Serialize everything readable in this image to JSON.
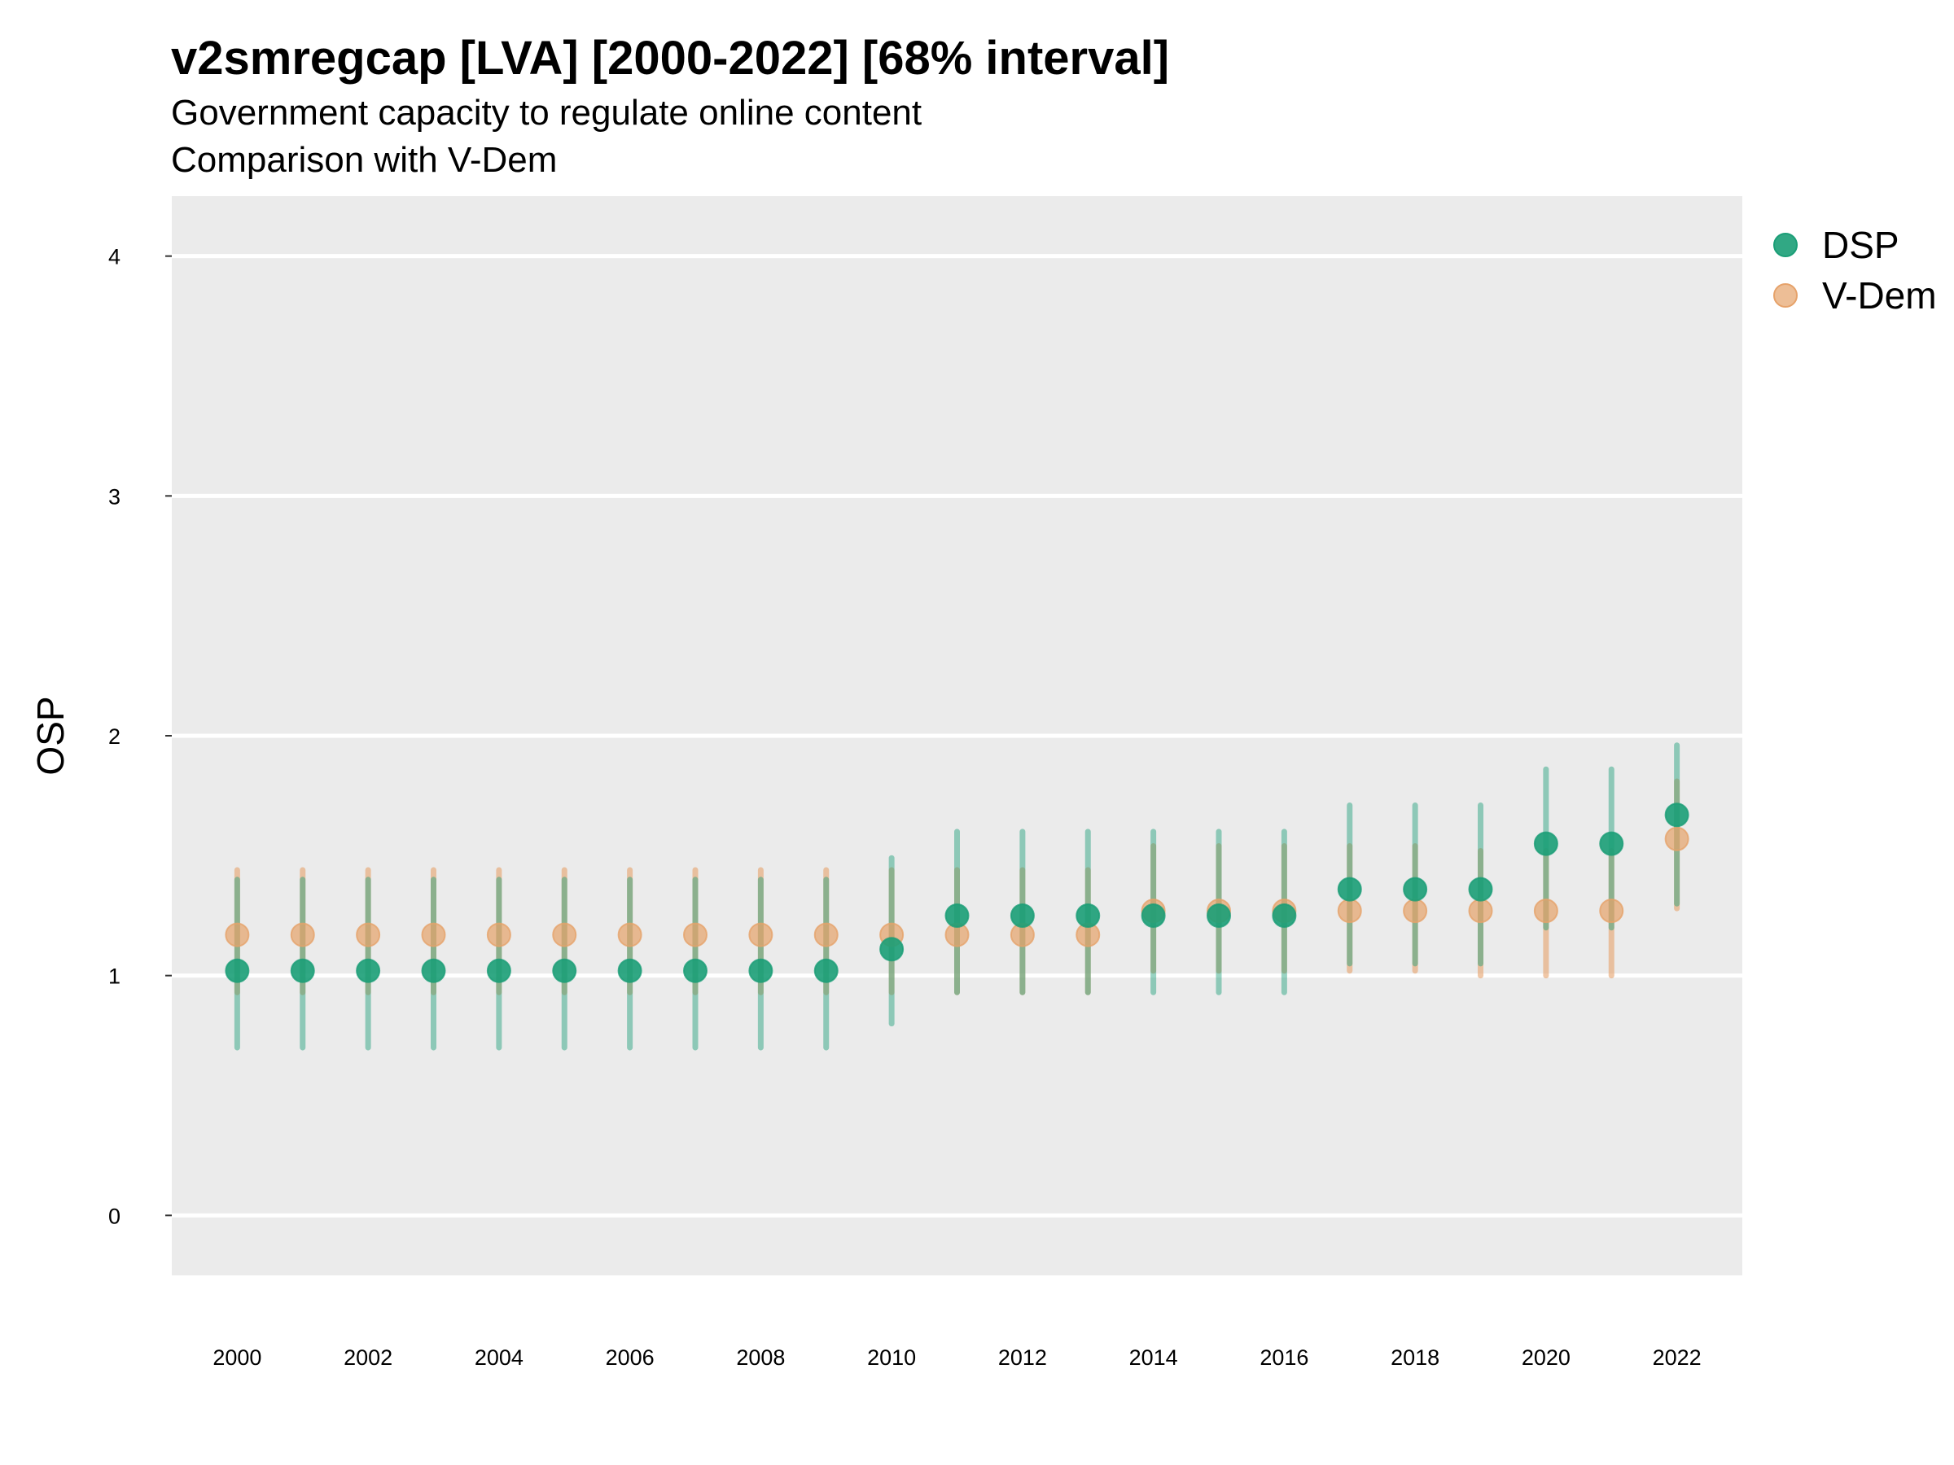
{
  "chart_data": {
    "type": "scatter",
    "title": "v2smregcap [LVA] [2000-2022] [68% interval]",
    "subtitle_lines": [
      "Government capacity to regulate online content",
      "Comparison with V-Dem"
    ],
    "xlabel": "",
    "ylabel": "OSP",
    "xlim": [
      1999,
      2023
    ],
    "ylim": [
      -0.25,
      4.25
    ],
    "x_ticks": [
      2000,
      2002,
      2004,
      2006,
      2008,
      2010,
      2012,
      2014,
      2016,
      2018,
      2020,
      2022
    ],
    "x_tick_labels": [
      "2000",
      "2002",
      "2004",
      "2006",
      "2008",
      "2010",
      "2012",
      "2014",
      "2016",
      "2018",
      "2020",
      "2022"
    ],
    "y_ticks": [
      0,
      1,
      2,
      3,
      4
    ],
    "y_tick_labels": [
      "0",
      "1",
      "2",
      "3",
      "4"
    ],
    "grid": true,
    "legend_position": "top-right",
    "x": [
      2000,
      2001,
      2002,
      2003,
      2004,
      2005,
      2006,
      2007,
      2008,
      2009,
      2010,
      2011,
      2012,
      2013,
      2014,
      2015,
      2016,
      2017,
      2018,
      2019,
      2020,
      2021,
      2022
    ],
    "series": [
      {
        "name": "DSP",
        "color": "#1b9e77",
        "values": [
          1.02,
          1.02,
          1.02,
          1.02,
          1.02,
          1.02,
          1.02,
          1.02,
          1.02,
          1.02,
          1.11,
          1.25,
          1.25,
          1.25,
          1.25,
          1.25,
          1.25,
          1.36,
          1.36,
          1.36,
          1.55,
          1.55,
          1.67
        ],
        "lower": [
          0.7,
          0.7,
          0.7,
          0.7,
          0.7,
          0.7,
          0.7,
          0.7,
          0.7,
          0.7,
          0.8,
          0.93,
          0.93,
          0.93,
          0.93,
          0.93,
          0.93,
          1.05,
          1.05,
          1.05,
          1.2,
          1.2,
          1.3
        ],
        "upper": [
          1.4,
          1.4,
          1.4,
          1.4,
          1.4,
          1.4,
          1.4,
          1.4,
          1.4,
          1.4,
          1.49,
          1.6,
          1.6,
          1.6,
          1.6,
          1.6,
          1.6,
          1.71,
          1.71,
          1.71,
          1.86,
          1.86,
          1.96
        ]
      },
      {
        "name": "V-Dem",
        "color": "#e6a26a",
        "values": [
          1.17,
          1.17,
          1.17,
          1.17,
          1.17,
          1.17,
          1.17,
          1.17,
          1.17,
          1.17,
          1.17,
          1.17,
          1.17,
          1.17,
          1.27,
          1.27,
          1.27,
          1.27,
          1.27,
          1.27,
          1.27,
          1.27,
          1.57
        ],
        "lower": [
          0.93,
          0.93,
          0.93,
          0.93,
          0.93,
          0.93,
          0.93,
          0.93,
          0.93,
          0.93,
          0.93,
          0.93,
          0.93,
          0.93,
          1.02,
          1.02,
          1.02,
          1.02,
          1.02,
          1.0,
          1.0,
          1.0,
          1.28
        ],
        "upper": [
          1.44,
          1.44,
          1.44,
          1.44,
          1.44,
          1.44,
          1.44,
          1.44,
          1.44,
          1.44,
          1.44,
          1.44,
          1.44,
          1.44,
          1.54,
          1.54,
          1.54,
          1.54,
          1.54,
          1.52,
          1.52,
          1.52,
          1.81
        ]
      }
    ]
  }
}
